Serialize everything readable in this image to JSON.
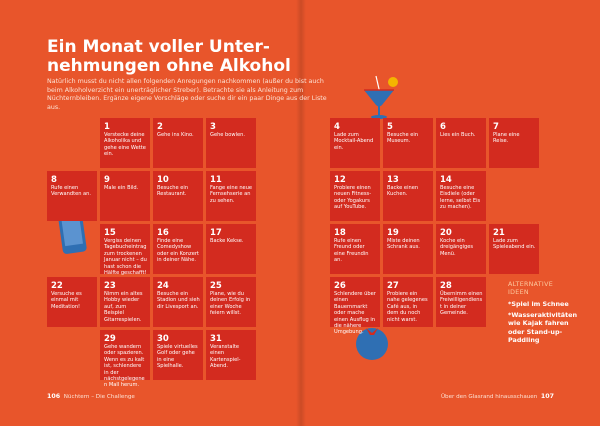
{
  "title": {
    "lines": [
      "Ein Monat voller Unter-",
      "nehmungen ohne Alkohol"
    ]
  },
  "intro": "Natürlich musst du nicht allen folgenden Anregungen nachkommen (außer du bist auch beim Alkoholverzicht ein unerträglicher Streber). Betrachte sie als Anleitung zum Nüchternbleiben. Ergänze eigene Vorschläge oder suche dir ein paar Dinge aus der Liste aus.",
  "days": [
    {
      "number": 1,
      "text": "Verstecke deine Alkoholika und gehe eine Wette ein."
    },
    {
      "number": 2,
      "text": "Gehe ins Kino."
    },
    {
      "number": 3,
      "text": "Gehe bowlen."
    },
    {
      "number": 4,
      "text": "Lade zum Mocktail-Abend ein."
    },
    {
      "number": 5,
      "text": "Besuche ein Museum."
    },
    {
      "number": 6,
      "text": "Lies ein Buch."
    },
    {
      "number": 7,
      "text": "Plane eine Reise."
    },
    {
      "number": 8,
      "text": "Rufe einen Verwandten an."
    },
    {
      "number": 9,
      "text": "Male ein Bild."
    },
    {
      "number": 10,
      "text": "Besuche ein Restaurant."
    },
    {
      "number": 11,
      "text": "Fange eine neue Fernsehserie an zu sehen."
    },
    {
      "number": 12,
      "text": "Probiere einen neuen Fitness- oder Yogakurs auf YouTube."
    },
    {
      "number": 13,
      "text": "Backe einen Kuchen."
    },
    {
      "number": 14,
      "text": "Besuche eine Eisdiele (oder lerne, selbst Eis zu machen)."
    },
    {
      "number": 15,
      "text": "Vergiss deinen Tagebucheintrag zum trockenen Januar nicht – du hast schon die Hälfte geschafft!"
    },
    {
      "number": 16,
      "text": "Finde eine Comedyshow oder ein Konzert in deiner Nähe."
    },
    {
      "number": 17,
      "text": "Backe Kekse."
    },
    {
      "number": 18,
      "text": "Rufe einen Freund oder eine Freundin an."
    },
    {
      "number": 19,
      "text": "Miste deinen Schrank aus."
    },
    {
      "number": 20,
      "text": "Koche ein dreigängiges Menü."
    },
    {
      "number": 21,
      "text": "Lade zum Spieleabend ein."
    },
    {
      "number": 22,
      "text": "Versuche es einmal mit Meditation!"
    },
    {
      "number": 23,
      "text": "Nimm ein altes Hobby wieder auf, zum Beispiel Gitarrespielen."
    },
    {
      "number": 24,
      "text": "Besuche ein Stadion und sieh dir Livesport an."
    },
    {
      "number": 25,
      "text": "Plane, wie du deinen Erfolg in einer Woche feiern willst."
    },
    {
      "number": 26,
      "text": "Schlendere über einen Bauernmarkt oder mache einen Ausflug in die nähere Umgebung."
    },
    {
      "number": 27,
      "text": "Probiere ein nahe gelegenes Café aus, in dem du noch nicht warst."
    },
    {
      "number": 28,
      "text": "Übernimm einen Freiwilligendienst in deiner Gemeinde."
    },
    {
      "number": 29,
      "text": "Gehe wandern oder spazieren. Wenn es zu kalt ist, schlendere in der nächstgelegenen Mall herum."
    },
    {
      "number": 30,
      "text": "Spiele virtuelles Golf oder gehe in eine Spielhalle."
    },
    {
      "number": 31,
      "text": "Veranstalte einen Kartenspiel-Abend."
    }
  ],
  "alternatives": {
    "heading": "ALTERNATIVE IDEEN",
    "items": [
      "*Spiel im Schnee",
      "*Wasseraktivitäten wie Kajak fahren oder Stand-up-Paddling"
    ]
  },
  "footer": {
    "left": {
      "page": "106",
      "text": "Nüchtern – Die Challenge"
    },
    "right": {
      "text": "Über den Glasrand hinausschauen",
      "page": "107"
    }
  }
}
